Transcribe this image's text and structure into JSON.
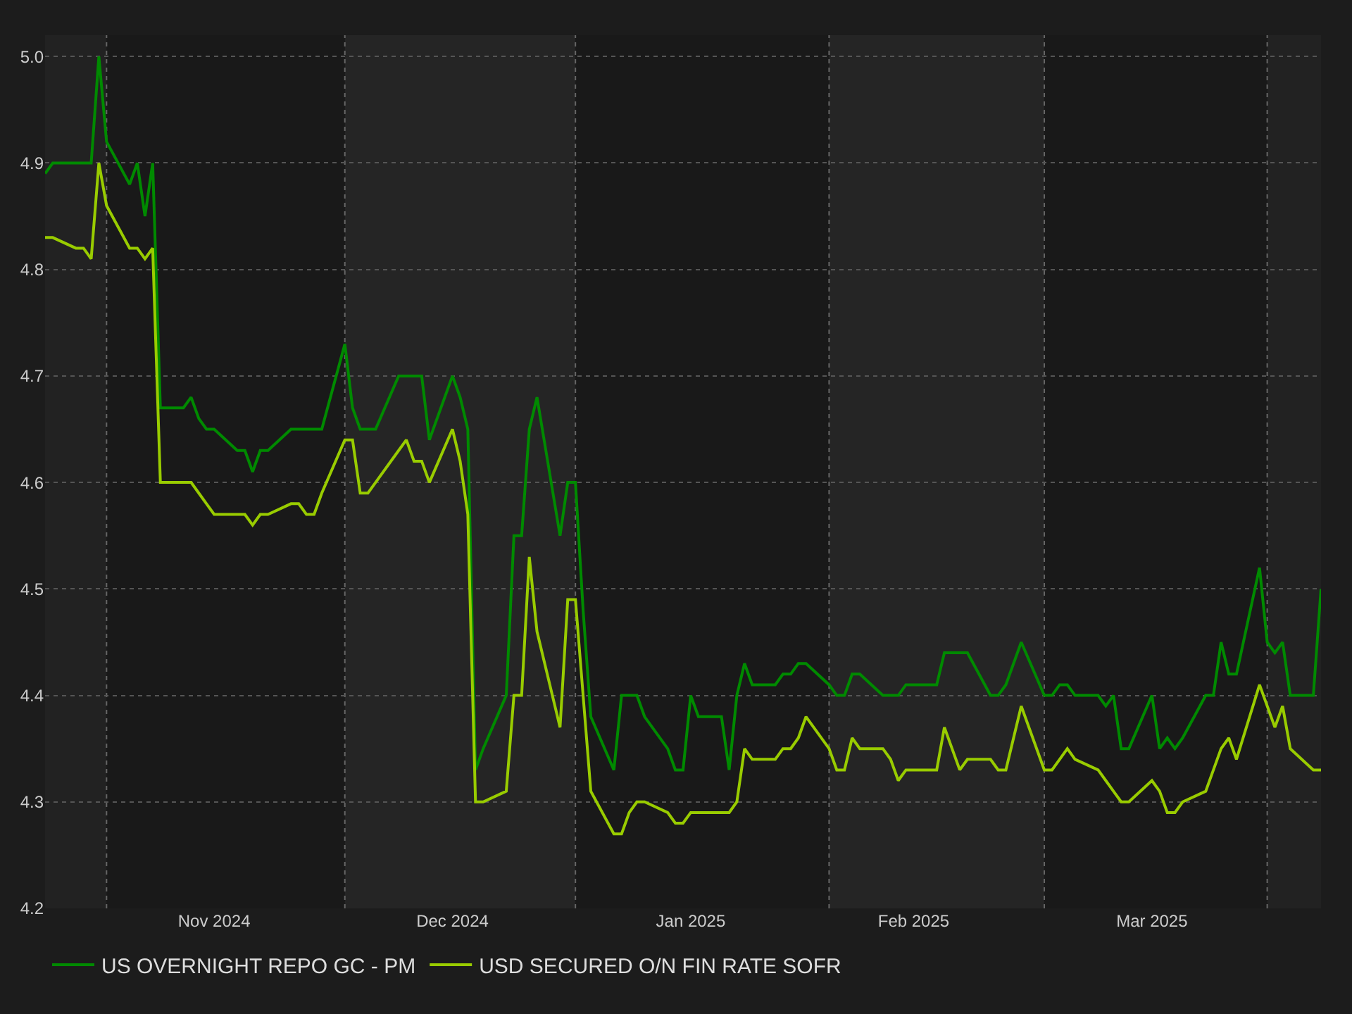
{
  "chart_data": {
    "type": "line",
    "x": [
      "2024-10-24",
      "2024-10-25",
      "2024-10-28",
      "2024-10-29",
      "2024-10-30",
      "2024-10-31",
      "2024-11-01",
      "2024-11-04",
      "2024-11-05",
      "2024-11-06",
      "2024-11-07",
      "2024-11-08",
      "2024-11-11",
      "2024-11-12",
      "2024-11-13",
      "2024-11-14",
      "2024-11-15",
      "2024-11-18",
      "2024-11-19",
      "2024-11-20",
      "2024-11-21",
      "2024-11-22",
      "2024-11-25",
      "2024-11-26",
      "2024-11-27",
      "2024-11-28",
      "2024-11-29",
      "2024-12-02",
      "2024-12-03",
      "2024-12-04",
      "2024-12-05",
      "2024-12-06",
      "2024-12-09",
      "2024-12-10",
      "2024-12-11",
      "2024-12-12",
      "2024-12-13",
      "2024-12-16",
      "2024-12-17",
      "2024-12-18",
      "2024-12-19",
      "2024-12-20",
      "2024-12-23",
      "2024-12-24",
      "2024-12-25",
      "2024-12-26",
      "2024-12-27",
      "2024-12-30",
      "2024-12-31",
      "2025-01-01",
      "2025-01-02",
      "2025-01-03",
      "2025-01-06",
      "2025-01-07",
      "2025-01-08",
      "2025-01-09",
      "2025-01-10",
      "2025-01-13",
      "2025-01-14",
      "2025-01-15",
      "2025-01-16",
      "2025-01-17",
      "2025-01-20",
      "2025-01-21",
      "2025-01-22",
      "2025-01-23",
      "2025-01-24",
      "2025-01-27",
      "2025-01-28",
      "2025-01-29",
      "2025-01-30",
      "2025-01-31",
      "2025-02-03",
      "2025-02-04",
      "2025-02-05",
      "2025-02-06",
      "2025-02-07",
      "2025-02-10",
      "2025-02-11",
      "2025-02-12",
      "2025-02-13",
      "2025-02-14",
      "2025-02-17",
      "2025-02-18",
      "2025-02-19",
      "2025-02-20",
      "2025-02-21",
      "2025-02-24",
      "2025-02-25",
      "2025-02-26",
      "2025-02-27",
      "2025-02-28",
      "2025-03-03",
      "2025-03-04",
      "2025-03-05",
      "2025-03-06",
      "2025-03-07",
      "2025-03-10",
      "2025-03-11",
      "2025-03-12",
      "2025-03-13",
      "2025-03-14",
      "2025-03-17",
      "2025-03-18",
      "2025-03-19",
      "2025-03-20",
      "2025-03-21",
      "2025-03-24",
      "2025-03-25",
      "2025-03-26",
      "2025-03-27",
      "2025-03-28",
      "2025-03-31",
      "2025-04-01",
      "2025-04-02",
      "2025-04-03",
      "2025-04-04",
      "2025-04-07",
      "2025-04-08"
    ],
    "series": [
      {
        "name": "US OVERNIGHT REPO GC - PM",
        "color": "#008a00",
        "values": [
          4.89,
          4.9,
          4.9,
          4.9,
          4.9,
          5.0,
          4.92,
          4.88,
          4.9,
          4.85,
          4.9,
          4.67,
          4.67,
          4.68,
          4.66,
          4.65,
          4.65,
          4.63,
          4.63,
          4.61,
          4.63,
          4.63,
          4.65,
          4.65,
          4.65,
          4.65,
          4.65,
          4.73,
          4.67,
          4.65,
          4.65,
          4.65,
          4.7,
          4.7,
          4.7,
          4.7,
          4.64,
          4.7,
          4.68,
          4.65,
          4.33,
          4.35,
          4.4,
          4.55,
          4.55,
          4.65,
          4.68,
          4.55,
          4.6,
          4.6,
          4.48,
          4.38,
          4.33,
          4.4,
          4.4,
          4.4,
          4.38,
          4.35,
          4.33,
          4.33,
          4.4,
          4.38,
          4.38,
          4.33,
          4.4,
          4.43,
          4.41,
          4.41,
          4.42,
          4.42,
          4.43,
          4.43,
          4.41,
          4.4,
          4.4,
          4.42,
          4.42,
          4.4,
          4.4,
          4.4,
          4.41,
          4.41,
          4.41,
          4.44,
          4.44,
          4.44,
          4.44,
          4.4,
          4.4,
          4.41,
          4.43,
          4.45,
          4.4,
          4.4,
          4.41,
          4.41,
          4.4,
          4.4,
          4.39,
          4.4,
          4.35,
          4.35,
          4.4,
          4.35,
          4.36,
          4.35,
          4.36,
          4.4,
          4.4,
          4.45,
          4.42,
          4.42,
          4.52,
          4.45,
          4.44,
          4.45,
          4.4,
          4.4,
          4.5
        ]
      },
      {
        "name": "USD SECURED O/N FIN RATE SOFR",
        "color": "#99cc00",
        "values": [
          4.83,
          4.83,
          4.82,
          4.82,
          4.81,
          4.9,
          4.86,
          4.82,
          4.82,
          4.81,
          4.82,
          4.6,
          4.6,
          4.6,
          4.59,
          4.58,
          4.57,
          4.57,
          4.57,
          4.56,
          4.57,
          4.57,
          4.58,
          4.58,
          4.57,
          4.57,
          4.59,
          4.64,
          4.64,
          4.59,
          4.59,
          4.6,
          4.63,
          4.64,
          4.62,
          4.62,
          4.6,
          4.65,
          4.62,
          4.57,
          4.3,
          4.3,
          4.31,
          4.4,
          4.4,
          4.53,
          4.46,
          4.37,
          4.49,
          4.49,
          4.4,
          4.31,
          4.27,
          4.27,
          4.29,
          4.3,
          4.3,
          4.29,
          4.28,
          4.28,
          4.29,
          4.29,
          4.29,
          4.29,
          4.3,
          4.35,
          4.34,
          4.34,
          4.35,
          4.35,
          4.36,
          4.38,
          4.35,
          4.33,
          4.33,
          4.36,
          4.35,
          4.35,
          4.34,
          4.32,
          4.33,
          4.33,
          4.33,
          4.37,
          4.35,
          4.33,
          4.34,
          4.34,
          4.33,
          4.33,
          4.36,
          4.39,
          4.33,
          4.33,
          4.34,
          4.35,
          4.34,
          4.33,
          4.32,
          4.31,
          4.3,
          4.3,
          4.32,
          4.31,
          4.29,
          4.29,
          4.3,
          4.31,
          4.33,
          4.35,
          4.36,
          4.34,
          4.41,
          4.39,
          4.37,
          4.39,
          4.35,
          4.33,
          4.33
        ]
      }
    ],
    "xlim": [
      "2024-10-24",
      "2025-04-08"
    ],
    "xticks": [
      {
        "value": "2024-11-15",
        "label": "Nov 2024"
      },
      {
        "value": "2024-12-16",
        "label": "Dec 2024"
      },
      {
        "value": "2025-01-16",
        "label": "Jan 2025"
      },
      {
        "value": "2025-02-14",
        "label": "Feb 2025"
      },
      {
        "value": "2025-03-17",
        "label": "Mar 2025"
      }
    ],
    "ylim": [
      4.2,
      5.02
    ],
    "yticks": [
      4.2,
      4.3,
      4.4,
      4.5,
      4.6,
      4.7,
      4.8,
      4.9,
      {
        "value": 5.0,
        "label": "5.0"
      }
    ],
    "grid": "y",
    "legend": "bottom left",
    "marker": "none",
    "line_style": "solid",
    "ref_lines": [
      {
        "axis": "x",
        "value": "2024-11-01",
        "color": "#666666",
        "line_style": "dotted"
      },
      {
        "axis": "x",
        "value": "2024-12-02",
        "color": "#666666",
        "line_style": "dotted"
      },
      {
        "axis": "x",
        "value": "2025-01-01",
        "color": "#666666",
        "line_style": "dotted"
      },
      {
        "axis": "x",
        "value": "2025-02-03",
        "color": "#666666",
        "line_style": "dotted"
      },
      {
        "axis": "x",
        "value": "2025-03-03",
        "color": "#666666",
        "line_style": "dotted"
      },
      {
        "axis": "x",
        "value": "2025-04-01",
        "color": "#666666",
        "line_style": "dotted"
      }
    ],
    "bands": [
      {
        "axis": "x",
        "from": "2024-10-24",
        "to": "2024-11-01",
        "color": "#222222"
      },
      {
        "axis": "x",
        "from": "2024-12-02",
        "to": "2025-01-01",
        "color": "#252525"
      },
      {
        "axis": "x",
        "from": "2025-02-03",
        "to": "2025-03-03",
        "color": "#252525"
      },
      {
        "axis": "x",
        "from": "2025-04-01",
        "to": "2025-04-08",
        "color": "#222222"
      }
    ]
  }
}
